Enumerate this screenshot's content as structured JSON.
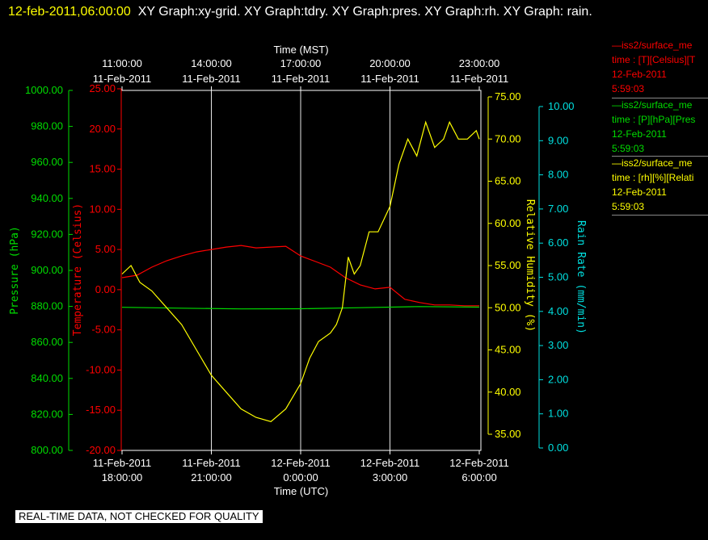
{
  "header": {
    "timestamp": "12-feb-2011,06:00:00",
    "graphs": "XY Graph:xy-grid.  XY Graph:tdry.  XY Graph:pres.  XY Graph:rh.  XY Graph: rain."
  },
  "legend": [
    {
      "name": "iss2/surface_me",
      "desc": "time : [T][Celsius][T",
      "date": "12-Feb-2011",
      "time": "5:59:03",
      "color": "#ff0000"
    },
    {
      "name": "iss2/surface_me",
      "desc": "time : [P][hPa][Pres",
      "date": "12-Feb-2011",
      "time": "5:59:03",
      "color": "#00dd00"
    },
    {
      "name": "iss2/surface_me",
      "desc": "time : [rh][%][Relati",
      "date": "12-Feb-2011",
      "time": "5:59:03",
      "color": "#ffff00"
    }
  ],
  "footer": "REAL-TIME DATA, NOT CHECKED FOR QUALITY",
  "chart_data": {
    "type": "line",
    "x_top": {
      "label": "Time (MST)",
      "ticks": [
        [
          "11:00:00",
          "11-Feb-2011"
        ],
        [
          "14:00:00",
          "11-Feb-2011"
        ],
        [
          "17:00:00",
          "11-Feb-2011"
        ],
        [
          "20:00:00",
          "11-Feb-2011"
        ],
        [
          "23:00:00",
          "11-Feb-2011"
        ]
      ]
    },
    "x_bottom": {
      "label": "Time (UTC)",
      "ticks": [
        [
          "11-Feb-2011",
          "18:00:00"
        ],
        [
          "11-Feb-2011",
          "21:00:00"
        ],
        [
          "12-Feb-2011",
          "0:00:00"
        ],
        [
          "12-Feb-2011",
          "3:00:00"
        ],
        [
          "12-Feb-2011",
          "6:00:00"
        ]
      ]
    },
    "x_hours": [
      0,
      3,
      6,
      9,
      12
    ],
    "grid": true,
    "axes": {
      "pressure": {
        "label": "Pressure (hPa)",
        "color": "#00dd00",
        "ylim": [
          800,
          1000
        ],
        "ticks": [
          "1000.00",
          "980.00",
          "960.00",
          "940.00",
          "920.00",
          "900.00",
          "880.00",
          "860.00",
          "840.00",
          "820.00",
          "800.00"
        ]
      },
      "temperature": {
        "label": "Temperature (Celsius)",
        "color": "#ff0000",
        "ylim": [
          -20,
          25
        ],
        "ticks": [
          "25.00",
          "20.00",
          "15.00",
          "10.00",
          "5.00",
          "0.00",
          "-5.00",
          "-10.00",
          "-15.00",
          "-20.00"
        ]
      },
      "rh": {
        "label": "Relative Humidity (%)",
        "color": "#ffff00",
        "ylim": [
          33,
          76
        ],
        "ticks": [
          "75.00",
          "70.00",
          "65.00",
          "60.00",
          "55.00",
          "50.00",
          "45.00",
          "40.00",
          "35.00"
        ]
      },
      "rain": {
        "label": "Rain Rate (mm/min)",
        "color": "#00e0e0",
        "ylim": [
          0,
          10.5
        ],
        "ticks": [
          "10.00",
          "9.00",
          "8.00",
          "7.00",
          "6.00",
          "5.00",
          "4.00",
          "3.00",
          "2.00",
          "1.00",
          "0.00"
        ]
      }
    },
    "series": [
      {
        "axis": "temperature",
        "color": "#ff0000",
        "x": [
          0,
          0.5,
          1.0,
          1.5,
          2.0,
          2.5,
          3.0,
          3.5,
          4.0,
          4.5,
          5.0,
          5.5,
          6.0,
          6.5,
          7.0,
          7.5,
          8.0,
          8.5,
          9.0,
          9.5,
          10.0,
          10.5,
          11.0,
          11.5,
          12.0
        ],
        "values": [
          1.5,
          1.8,
          2.8,
          3.6,
          4.2,
          4.7,
          5.0,
          5.3,
          5.5,
          5.2,
          5.3,
          5.4,
          4.2,
          3.5,
          2.8,
          1.5,
          0.6,
          0.1,
          0.3,
          -1.2,
          -1.6,
          -1.9,
          -1.9,
          -2.0,
          -2.0
        ]
      },
      {
        "axis": "pressure",
        "color": "#00dd00",
        "x": [
          0,
          2,
          4,
          6,
          8,
          10,
          12
        ],
        "values": [
          879.5,
          879.0,
          878.6,
          878.7,
          879.3,
          879.9,
          879.6
        ]
      },
      {
        "axis": "rh",
        "color": "#ffff00",
        "x": [
          0,
          0.3,
          0.6,
          1.0,
          1.5,
          2.0,
          2.5,
          3.0,
          3.5,
          4.0,
          4.5,
          5.0,
          5.5,
          6.0,
          6.3,
          6.6,
          7.0,
          7.2,
          7.4,
          7.6,
          7.8,
          8.0,
          8.3,
          8.6,
          9.0,
          9.3,
          9.6,
          9.9,
          10.2,
          10.5,
          10.8,
          11.0,
          11.3,
          11.6,
          11.9,
          12.0
        ],
        "values": [
          54,
          55,
          53,
          52,
          50,
          48,
          45,
          42,
          40,
          38,
          37,
          36.5,
          38,
          41,
          44,
          46,
          47,
          48,
          50,
          56,
          54,
          55,
          59,
          59,
          62,
          67,
          70,
          68,
          72,
          69,
          70,
          72,
          70,
          70,
          71,
          70
        ]
      }
    ]
  }
}
